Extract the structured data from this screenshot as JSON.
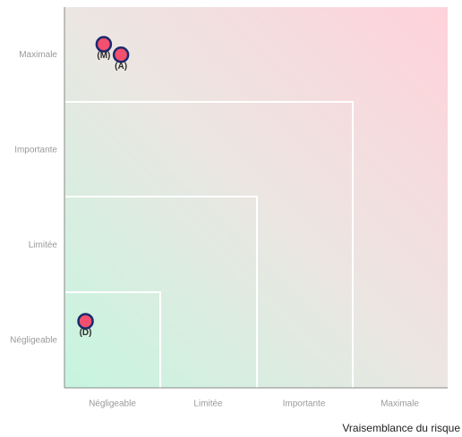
{
  "chart_data": {
    "type": "scatter",
    "xlabel": "Vraisemblance du risque",
    "xlim": [
      0,
      4
    ],
    "ylim": [
      0,
      4
    ],
    "xticks": [
      {
        "value": 0.5,
        "label": "Négligeable"
      },
      {
        "value": 1.5,
        "label": "Limitée"
      },
      {
        "value": 2.5,
        "label": "Importante"
      },
      {
        "value": 3.5,
        "label": "Maximale"
      }
    ],
    "yticks": [
      {
        "value": 0.5,
        "label": "Négligeable"
      },
      {
        "value": 1.5,
        "label": "Limitée"
      },
      {
        "value": 2.5,
        "label": "Importante"
      },
      {
        "value": 3.5,
        "label": "Maximale"
      }
    ],
    "color": "#f2506e",
    "edge_color": "#1b2a6e",
    "points": [
      {
        "label": "(M)",
        "x": 0.41,
        "y": 3.61
      },
      {
        "label": "(A)",
        "x": 0.59,
        "y": 3.5
      },
      {
        "label": "(D)",
        "x": 0.22,
        "y": 0.7
      }
    ]
  }
}
